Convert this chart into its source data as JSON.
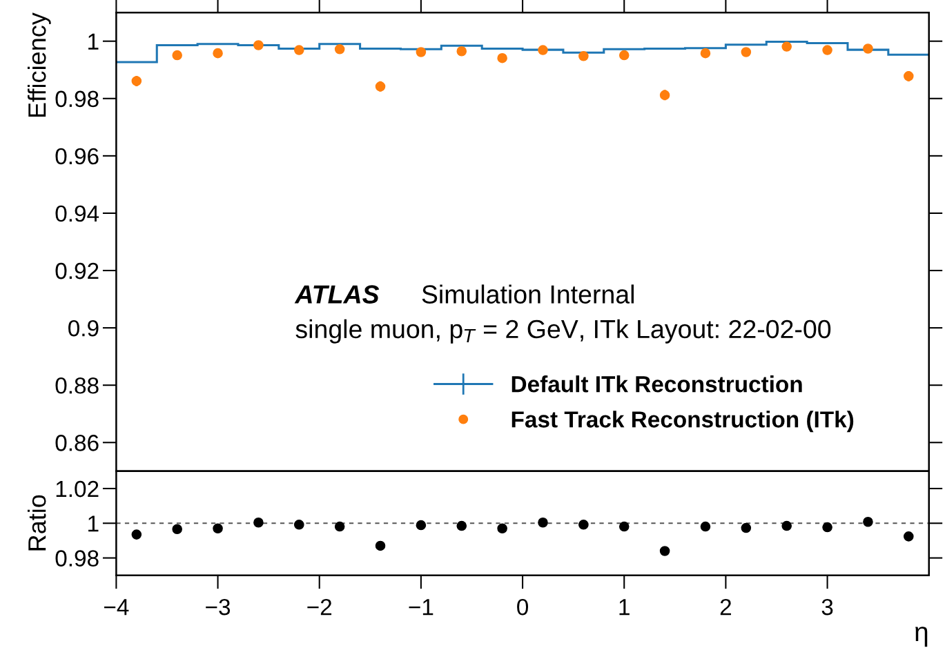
{
  "chart_data": [
    {
      "type": "histogram",
      "ylabel": "Efficiency",
      "xlim": [
        -4,
        4
      ],
      "ylim": [
        0.85,
        1.01
      ],
      "xticks": [
        -4,
        -3,
        -2,
        -1,
        0,
        1,
        2,
        3
      ],
      "yticks": [
        0.86,
        0.88,
        0.9,
        0.92,
        0.94,
        0.96,
        0.98,
        1
      ],
      "tick_labels": "y",
      "legend": "bottom",
      "bins": [
        -4,
        -3.6,
        -3.2,
        -2.8,
        -2.4,
        -2.0,
        -1.6,
        -1.2,
        -0.8,
        -0.4,
        0,
        0.4,
        0.8,
        1.2,
        1.6,
        2.0,
        2.4,
        2.8,
        3.2,
        3.6,
        4
      ],
      "annotations": [
        "ATLAS",
        "Simulation Internal",
        "single muon, p$_{T}$ = 2 GeV, ITk Layout: 22-02-00"
      ],
      "series": [
        {
          "name": "Default ITk Reconstruction",
          "type": "histogram",
          "color": "#1f77b4",
          "values": [
            0.9927,
            0.9986,
            0.999,
            0.9986,
            0.9974,
            0.999,
            0.9974,
            0.9972,
            0.9984,
            0.9974,
            0.997,
            0.996,
            0.9972,
            0.9974,
            0.9976,
            0.9988,
            0.9998,
            0.9993,
            0.997,
            0.9953
          ]
        },
        {
          "name": "Fast Track Reconstruction (ITk)",
          "type": "scatter",
          "color": "#ff7f0e",
          "marker": "circle",
          "x": [
            -3.8,
            -3.4,
            -3.0,
            -2.6,
            -2.2,
            -1.8,
            -1.4,
            -1.0,
            -0.6,
            -0.2,
            0.2,
            0.6,
            1.0,
            1.4,
            1.8,
            2.2,
            2.6,
            3.0,
            3.4,
            3.8
          ],
          "values": [
            0.9861,
            0.9951,
            0.9958,
            0.9986,
            0.9969,
            0.9972,
            0.9842,
            0.9962,
            0.9965,
            0.9941,
            0.9969,
            0.9948,
            0.9951,
            0.9812,
            0.9958,
            0.9962,
            0.9981,
            0.9969,
            0.9974,
            0.9878
          ],
          "errors": [
            0.0018,
            null,
            null,
            null,
            null,
            null,
            0.0018,
            null,
            null,
            null,
            null,
            null,
            null,
            0.0018,
            null,
            null,
            null,
            null,
            null,
            0.0018
          ]
        }
      ]
    },
    {
      "type": "scatter",
      "ylabel": "Ratio",
      "xlabel": "η",
      "xlim": [
        -4,
        4
      ],
      "ylim": [
        0.97,
        1.03
      ],
      "xticks": [
        {
          "value": -4,
          "label": "−4"
        },
        {
          "value": -3,
          "label": "−3"
        },
        {
          "value": -2,
          "label": "−2"
        },
        {
          "value": -1,
          "label": "−1"
        },
        0,
        1,
        2,
        3
      ],
      "yticks": [
        0.98,
        1,
        1.02
      ],
      "marker": "circle",
      "ref_lines": [
        {
          "axis": "y",
          "value": 1,
          "color": "#555555",
          "line_style": "dashed"
        }
      ],
      "series": [
        {
          "color": "#000000",
          "x": [
            -3.8,
            -3.4,
            -3.0,
            -2.6,
            -2.2,
            -1.8,
            -1.4,
            -1.0,
            -0.6,
            -0.2,
            0.2,
            0.6,
            1.0,
            1.4,
            1.8,
            2.2,
            2.6,
            3.0,
            3.4,
            3.8
          ],
          "values": [
            0.9935,
            0.9966,
            0.997,
            1.0004,
            0.9992,
            0.9981,
            0.987,
            0.9989,
            0.9985,
            0.997,
            1.0004,
            0.9992,
            0.9981,
            0.984,
            0.9981,
            0.9973,
            0.9985,
            0.9977,
            1.0008,
            0.9924
          ]
        }
      ]
    }
  ]
}
